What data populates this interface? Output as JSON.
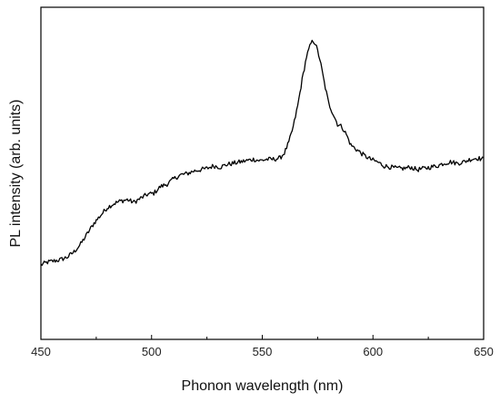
{
  "chart_data": {
    "type": "line",
    "title": "",
    "xlabel": "Phonon wavelength (nm)",
    "ylabel": "PL intensity (arb. units)",
    "xlim": [
      450,
      650
    ],
    "ylim": [
      0,
      1
    ],
    "x_ticks": [
      450,
      500,
      550,
      600,
      650
    ],
    "x_tick_labels": [
      "450",
      "500",
      "550",
      "600",
      "650"
    ],
    "y_ticks_shown": false,
    "grid": false,
    "legend": "none",
    "colors": {
      "line": "#000000",
      "axis": "#000000",
      "background": "#ffffff"
    },
    "series": [
      {
        "x": [
          450,
          453,
          456,
          459,
          462,
          465,
          468,
          471,
          474,
          477,
          480,
          483,
          486,
          489,
          492,
          495,
          498,
          501,
          504,
          507,
          510,
          513,
          516,
          519,
          522,
          525,
          528,
          531,
          534,
          537,
          540,
          543,
          546,
          549,
          552,
          555,
          558,
          560,
          562,
          564,
          566,
          568,
          570,
          572,
          573,
          574,
          576,
          578,
          580,
          582,
          584,
          586,
          588,
          590,
          593,
          596,
          599,
          602,
          605,
          608,
          611,
          614,
          617,
          620,
          623,
          626,
          629,
          632,
          635,
          638,
          641,
          644,
          647,
          650
        ],
        "y": [
          0.14,
          0.15,
          0.155,
          0.16,
          0.17,
          0.19,
          0.22,
          0.26,
          0.3,
          0.33,
          0.36,
          0.375,
          0.385,
          0.39,
          0.38,
          0.395,
          0.41,
          0.415,
          0.44,
          0.45,
          0.47,
          0.485,
          0.49,
          0.5,
          0.505,
          0.51,
          0.52,
          0.515,
          0.525,
          0.53,
          0.535,
          0.54,
          0.545,
          0.54,
          0.545,
          0.545,
          0.55,
          0.57,
          0.61,
          0.67,
          0.75,
          0.85,
          0.94,
          0.99,
          1.0,
          0.99,
          0.93,
          0.84,
          0.76,
          0.72,
          0.68,
          0.67,
          0.64,
          0.6,
          0.58,
          0.56,
          0.545,
          0.535,
          0.52,
          0.515,
          0.51,
          0.51,
          0.515,
          0.505,
          0.51,
          0.515,
          0.52,
          0.53,
          0.535,
          0.53,
          0.535,
          0.545,
          0.55,
          0.545
        ]
      }
    ]
  }
}
